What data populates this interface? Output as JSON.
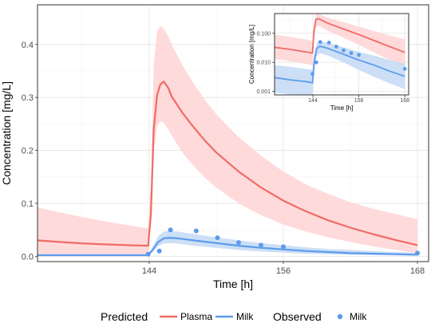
{
  "chart_data": [
    {
      "type": "line",
      "xlabel": "Time [h]",
      "ylabel": "Concentration [mg/L]",
      "xlim": [
        134,
        169
      ],
      "ylim": [
        -0.01,
        0.475
      ],
      "xticks": [
        144,
        156,
        168
      ],
      "yticks": [
        0.0,
        0.1,
        0.2,
        0.3,
        0.4
      ],
      "ytick_labels": [
        "0.0",
        "0.1",
        "0.2",
        "0.3",
        "0.4"
      ],
      "grid": true,
      "series": [
        {
          "name": "Plasma",
          "kind": "predicted",
          "color": "#ef6b67",
          "band_color": "#ffd6d6",
          "x": [
            134,
            136,
            138,
            140,
            142,
            143.9,
            144.15,
            144.4,
            144.7,
            145,
            145.3,
            145.7,
            146,
            147,
            148,
            149,
            150,
            152,
            154,
            156,
            158,
            160,
            162,
            164,
            166,
            168
          ],
          "values": [
            0.03,
            0.027,
            0.0245,
            0.0225,
            0.021,
            0.02,
            0.08,
            0.24,
            0.305,
            0.325,
            0.33,
            0.318,
            0.302,
            0.27,
            0.243,
            0.218,
            0.196,
            0.16,
            0.13,
            0.105,
            0.085,
            0.068,
            0.054,
            0.042,
            0.031,
            0.021
          ],
          "lower": [
            0.0,
            0.0,
            0.0,
            0.0,
            0.0,
            0.0,
            0.06,
            0.2,
            0.245,
            0.255,
            0.252,
            0.24,
            0.228,
            0.195,
            0.17,
            0.148,
            0.13,
            0.1,
            0.078,
            0.06,
            0.047,
            0.036,
            0.027,
            0.019,
            0.012,
            0.006
          ],
          "upper": [
            0.092,
            0.083,
            0.074,
            0.066,
            0.059,
            0.053,
            0.14,
            0.36,
            0.425,
            0.435,
            0.43,
            0.415,
            0.4,
            0.36,
            0.325,
            0.295,
            0.268,
            0.225,
            0.19,
            0.16,
            0.136,
            0.118,
            0.102,
            0.09,
            0.08,
            0.07
          ]
        },
        {
          "name": "Milk",
          "kind": "predicted",
          "color": "#5c9bec",
          "band_color": "#c7dcf5",
          "x": [
            134,
            138,
            142,
            143.9,
            144.3,
            144.8,
            145.3,
            145.8,
            146.5,
            148,
            150,
            152,
            154,
            156,
            158,
            160,
            162,
            164,
            166,
            168
          ],
          "values": [
            0.002,
            0.002,
            0.002,
            0.002,
            0.012,
            0.027,
            0.034,
            0.035,
            0.034,
            0.03,
            0.025,
            0.02,
            0.016,
            0.013,
            0.01,
            0.008,
            0.006,
            0.005,
            0.004,
            0.003
          ],
          "lower": [
            0.0005,
            0.0005,
            0.0005,
            0.0005,
            0.008,
            0.019,
            0.024,
            0.025,
            0.024,
            0.02,
            0.016,
            0.012,
            0.009,
            0.007,
            0.005,
            0.004,
            0.003,
            0.0022,
            0.0016,
            0.0012
          ],
          "upper": [
            0.004,
            0.004,
            0.004,
            0.004,
            0.018,
            0.038,
            0.047,
            0.048,
            0.047,
            0.042,
            0.036,
            0.03,
            0.025,
            0.021,
            0.017,
            0.014,
            0.012,
            0.01,
            0.008,
            0.0065
          ]
        },
        {
          "name": "Milk",
          "kind": "observed",
          "color": "#5c9bec",
          "x": [
            143.9,
            144.9,
            145.9,
            148.2,
            150.1,
            152,
            154,
            156,
            168
          ],
          "values": [
            0.004,
            0.01,
            0.05,
            0.048,
            0.035,
            0.026,
            0.021,
            0.018,
            0.006
          ]
        }
      ]
    },
    {
      "type": "line",
      "xlabel": "Time [h]",
      "ylabel": "Concentration [mg/L]",
      "log_y": true,
      "xlim": [
        134,
        169
      ],
      "ylim_log10": [
        -3.12,
        -0.32
      ],
      "xticks": [
        144,
        156,
        168
      ],
      "yticks": [
        0.001,
        0.01,
        0.1
      ],
      "ytick_labels": [
        "0.001",
        "0.010",
        "0.100"
      ],
      "grid": true,
      "series": [
        {
          "name": "Plasma",
          "kind": "predicted",
          "color": "#ef6b67",
          "band_color": "#ffd6d6",
          "x": [
            134,
            138,
            142,
            143.9,
            144.3,
            144.8,
            145.5,
            148,
            152,
            156,
            160,
            164,
            168
          ],
          "values": [
            0.033,
            0.028,
            0.023,
            0.021,
            0.12,
            0.3,
            0.32,
            0.22,
            0.14,
            0.09,
            0.056,
            0.035,
            0.022
          ],
          "lower": [
            0.013,
            0.011,
            0.009,
            0.008,
            0.06,
            0.16,
            0.18,
            0.12,
            0.07,
            0.04,
            0.022,
            0.012,
            0.007
          ],
          "upper": [
            0.09,
            0.075,
            0.062,
            0.055,
            0.2,
            0.46,
            0.47,
            0.34,
            0.24,
            0.17,
            0.12,
            0.085,
            0.062
          ]
        },
        {
          "name": "Milk",
          "kind": "predicted",
          "color": "#5c9bec",
          "band_color": "#c7dcf5",
          "x": [
            134,
            138,
            142,
            143.9,
            144.4,
            145,
            145.8,
            148,
            152,
            156,
            160,
            164,
            168
          ],
          "values": [
            0.003,
            0.0025,
            0.0022,
            0.002,
            0.012,
            0.03,
            0.036,
            0.03,
            0.019,
            0.012,
            0.008,
            0.005,
            0.0033
          ],
          "lower": [
            0.0009,
            0.0008,
            0.0007,
            0.0006,
            0.006,
            0.016,
            0.021,
            0.017,
            0.01,
            0.0055,
            0.0032,
            0.0019,
            0.0012
          ],
          "upper": [
            0.008,
            0.007,
            0.006,
            0.0055,
            0.02,
            0.046,
            0.054,
            0.047,
            0.033,
            0.023,
            0.017,
            0.012,
            0.009
          ]
        },
        {
          "name": "Milk",
          "kind": "observed",
          "color": "#5c9bec",
          "x": [
            143.9,
            144.9,
            145.9,
            148.2,
            150.1,
            152,
            154,
            156,
            168
          ],
          "values": [
            0.004,
            0.01,
            0.05,
            0.048,
            0.035,
            0.026,
            0.021,
            0.018,
            0.006
          ]
        }
      ]
    }
  ],
  "legend": {
    "placement": "bottom",
    "predicted_title": "Predicted",
    "predicted_items": [
      {
        "label": "Plasma",
        "color": "#ef6b67"
      },
      {
        "label": "Milk",
        "color": "#5c9bec"
      }
    ],
    "observed_title": "Observed",
    "observed_items": [
      {
        "label": "Milk",
        "color": "#5c9bec"
      }
    ]
  }
}
